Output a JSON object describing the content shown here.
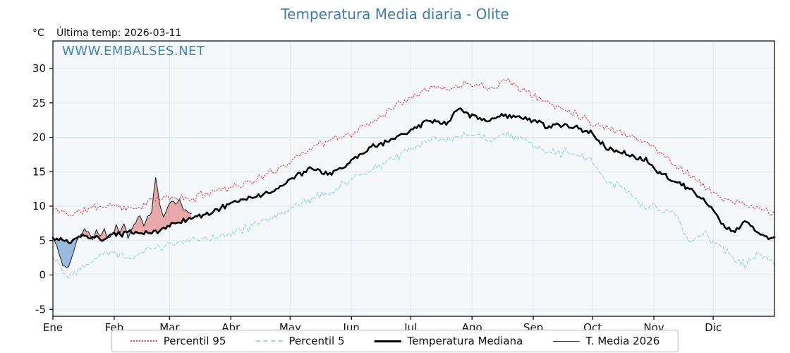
{
  "title": "Temperatura Media diaria - Olite",
  "watermark": "WWW.EMBALSES.NET",
  "header": {
    "units_label": "°C",
    "last_temp_label": "Última temp: 2026-03-11"
  },
  "legend": {
    "items": [
      {
        "label": "Percentil 95"
      },
      {
        "label": "Percentil 5"
      },
      {
        "label": "Temperatura Mediana"
      },
      {
        "label": "T. Media 2026"
      }
    ]
  },
  "chart_data": {
    "type": "line",
    "title": "Temperatura Media diaria - Olite",
    "ylabel": "°C",
    "xlabel": "",
    "grid": true,
    "legend_position": "bottom",
    "x_tick_labels": [
      "Ene",
      "Feb",
      "Mar",
      "Abr",
      "May",
      "Jun",
      "Jul",
      "Ago",
      "Sep",
      "Oct",
      "Nov",
      "Dic"
    ],
    "month_start_days": [
      0,
      31,
      59,
      90,
      120,
      151,
      181,
      212,
      243,
      273,
      304,
      334
    ],
    "days_in_year": 365,
    "ylim": [
      -6,
      34
    ],
    "yticks": [
      -5,
      0,
      5,
      10,
      15,
      20,
      25,
      30
    ],
    "colors": {
      "p95": "#d84040",
      "p5": "#9fd4e5",
      "median": "#000000",
      "t2026": "#2a2a2a",
      "fill_above": "rgba(222,90,90,0.5)",
      "fill_below": "rgba(95,145,205,0.6)",
      "plot_bg": "#f4f8fb",
      "grid": "#dde8f2",
      "axis": "#000000",
      "title": "#3d7bab"
    },
    "series": [
      {
        "name": "Percentil 95",
        "style": "dotted",
        "width": 1.1,
        "max_day": 365,
        "noise_amp": 0.7,
        "seed": 11,
        "anchors": [
          [
            0,
            9.5
          ],
          [
            10,
            8.8
          ],
          [
            20,
            9.8
          ],
          [
            31,
            10.2
          ],
          [
            40,
            9.5
          ],
          [
            50,
            10.8
          ],
          [
            59,
            11.3
          ],
          [
            70,
            11.0
          ],
          [
            80,
            12.2
          ],
          [
            90,
            12.8
          ],
          [
            100,
            13.5
          ],
          [
            110,
            14.8
          ],
          [
            120,
            16.5
          ],
          [
            130,
            18.5
          ],
          [
            140,
            19.5
          ],
          [
            151,
            20.5
          ],
          [
            160,
            22.0
          ],
          [
            170,
            24.0
          ],
          [
            181,
            26.0
          ],
          [
            190,
            27.3
          ],
          [
            200,
            27.0
          ],
          [
            212,
            28.0
          ],
          [
            220,
            27.2
          ],
          [
            230,
            28.3
          ],
          [
            243,
            26.0
          ],
          [
            255,
            24.5
          ],
          [
            265,
            23.5
          ],
          [
            273,
            22.0
          ],
          [
            285,
            21.0
          ],
          [
            295,
            20.0
          ],
          [
            304,
            18.5
          ],
          [
            315,
            16.0
          ],
          [
            325,
            14.0
          ],
          [
            334,
            11.8
          ],
          [
            345,
            10.5
          ],
          [
            355,
            9.8
          ],
          [
            365,
            9.0
          ]
        ]
      },
      {
        "name": "Percentil 5",
        "style": "dashed",
        "width": 1.2,
        "max_day": 365,
        "noise_amp": 0.8,
        "seed": 22,
        "anchors": [
          [
            0,
            2.8
          ],
          [
            8,
            -0.3
          ],
          [
            15,
            1.5
          ],
          [
            25,
            3.2
          ],
          [
            31,
            3.3
          ],
          [
            40,
            2.5
          ],
          [
            50,
            4.0
          ],
          [
            59,
            4.3
          ],
          [
            70,
            5.0
          ],
          [
            80,
            5.5
          ],
          [
            90,
            6.2
          ],
          [
            100,
            7.0
          ],
          [
            110,
            8.0
          ],
          [
            120,
            9.8
          ],
          [
            130,
            11.0
          ],
          [
            140,
            12.0
          ],
          [
            151,
            13.8
          ],
          [
            160,
            15.0
          ],
          [
            170,
            16.5
          ],
          [
            181,
            18.5
          ],
          [
            190,
            19.3
          ],
          [
            200,
            20.0
          ],
          [
            212,
            20.3
          ],
          [
            220,
            19.8
          ],
          [
            230,
            20.5
          ],
          [
            243,
            19.0
          ],
          [
            250,
            17.5
          ],
          [
            260,
            18.0
          ],
          [
            273,
            16.5
          ],
          [
            280,
            13.5
          ],
          [
            290,
            12.5
          ],
          [
            300,
            9.5
          ],
          [
            304,
            10.0
          ],
          [
            315,
            8.8
          ],
          [
            322,
            4.5
          ],
          [
            330,
            6.0
          ],
          [
            334,
            5.0
          ],
          [
            342,
            3.0
          ],
          [
            350,
            1.5
          ],
          [
            357,
            3.5
          ],
          [
            365,
            1.8
          ]
        ]
      },
      {
        "name": "Temperatura Mediana",
        "style": "solid",
        "width": 2.6,
        "max_day": 365,
        "noise_amp": 0.45,
        "seed": 33,
        "anchors": [
          [
            0,
            5.3
          ],
          [
            8,
            4.8
          ],
          [
            15,
            5.6
          ],
          [
            25,
            5.2
          ],
          [
            31,
            5.8
          ],
          [
            40,
            6.2
          ],
          [
            50,
            6.0
          ],
          [
            59,
            7.2
          ],
          [
            70,
            8.3
          ],
          [
            80,
            9.0
          ],
          [
            90,
            10.5
          ],
          [
            100,
            11.2
          ],
          [
            110,
            12.0
          ],
          [
            120,
            13.8
          ],
          [
            130,
            15.5
          ],
          [
            140,
            14.5
          ],
          [
            151,
            16.5
          ],
          [
            160,
            18.5
          ],
          [
            170,
            19.5
          ],
          [
            181,
            21.0
          ],
          [
            190,
            22.3
          ],
          [
            200,
            22.0
          ],
          [
            205,
            24.2
          ],
          [
            212,
            23.0
          ],
          [
            220,
            22.5
          ],
          [
            230,
            23.2
          ],
          [
            243,
            22.5
          ],
          [
            250,
            21.5
          ],
          [
            260,
            21.8
          ],
          [
            273,
            20.5
          ],
          [
            280,
            18.5
          ],
          [
            290,
            17.5
          ],
          [
            300,
            16.8
          ],
          [
            304,
            15.5
          ],
          [
            315,
            13.5
          ],
          [
            322,
            12.5
          ],
          [
            330,
            10.5
          ],
          [
            334,
            9.5
          ],
          [
            340,
            7.0
          ],
          [
            345,
            6.2
          ],
          [
            350,
            8.0
          ],
          [
            357,
            6.0
          ],
          [
            365,
            5.2
          ]
        ]
      },
      {
        "name": "T. Media 2026",
        "style": "solid",
        "width": 1.1,
        "max_day": 70,
        "noise_amp": 0.35,
        "seed": 44,
        "anchors": [
          [
            0,
            5.5
          ],
          [
            2,
            4.2
          ],
          [
            4,
            2.2
          ],
          [
            6,
            1.0
          ],
          [
            8,
            1.2
          ],
          [
            10,
            3.0
          ],
          [
            12,
            4.8
          ],
          [
            14,
            5.8
          ],
          [
            16,
            6.8
          ],
          [
            18,
            6.2
          ],
          [
            20,
            5.2
          ],
          [
            22,
            6.3
          ],
          [
            24,
            5.6
          ],
          [
            26,
            6.6
          ],
          [
            28,
            5.4
          ],
          [
            30,
            6.0
          ],
          [
            32,
            7.0
          ],
          [
            34,
            6.2
          ],
          [
            36,
            7.4
          ],
          [
            38,
            5.4
          ],
          [
            40,
            6.8
          ],
          [
            42,
            7.8
          ],
          [
            44,
            8.6
          ],
          [
            46,
            7.2
          ],
          [
            48,
            8.4
          ],
          [
            50,
            9.2
          ],
          [
            52,
            14.4
          ],
          [
            54,
            10.5
          ],
          [
            56,
            8.2
          ],
          [
            58,
            9.8
          ],
          [
            60,
            10.8
          ],
          [
            62,
            10.2
          ],
          [
            64,
            11.0
          ],
          [
            66,
            9.6
          ],
          [
            68,
            9.2
          ],
          [
            70,
            8.8
          ]
        ]
      }
    ]
  }
}
